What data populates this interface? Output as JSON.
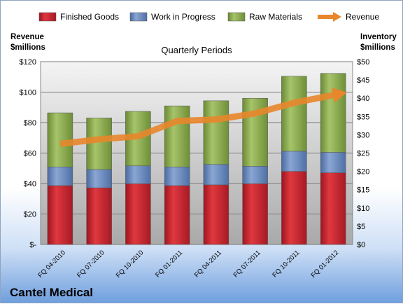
{
  "chart_data": {
    "type": "bar",
    "stacked": true,
    "company": "Cantel Medical",
    "subtitle": "Quarterly Periods",
    "left_axis": {
      "title": [
        "Revenue",
        "$millions"
      ],
      "ylim": [
        0,
        120
      ],
      "ticks": [
        "$-",
        "$20",
        "$40",
        "$60",
        "$80",
        "$100",
        "$120"
      ]
    },
    "right_axis": {
      "title": [
        "Inventory",
        "$millions"
      ],
      "ylim": [
        0,
        50
      ],
      "ticks": [
        "$0",
        "$5",
        "$10",
        "$15",
        "$20",
        "$25",
        "$30",
        "$35",
        "$40",
        "$45",
        "$50"
      ]
    },
    "categories": [
      "FQ 04-2010",
      "FQ 07-2010",
      "FQ 10-2010",
      "FQ 01-2011",
      "FQ 04-2011",
      "FQ 07-2011",
      "FQ 10-2011",
      "FQ 01-2012"
    ],
    "series": [
      {
        "name": "Finished Goods",
        "axis": "right",
        "color": "#c0202a",
        "values": [
          16.1,
          15.5,
          16.6,
          16.1,
          16.3,
          16.6,
          20.0,
          19.6
        ]
      },
      {
        "name": "Work in Progress",
        "axis": "right",
        "color": "#5b7fb5",
        "values": [
          5.1,
          5.0,
          4.9,
          5.1,
          5.6,
          4.8,
          5.5,
          5.6
        ]
      },
      {
        "name": "Raw Materials",
        "axis": "right",
        "color": "#86a84a",
        "values": [
          14.8,
          14.1,
          14.9,
          16.7,
          17.4,
          18.6,
          20.5,
          21.6
        ]
      },
      {
        "name": "Revenue",
        "axis": "left",
        "type": "line",
        "color": "#e8862b",
        "values": [
          66,
          69,
          71,
          81,
          82,
          86,
          93,
          98
        ]
      }
    ],
    "legend_position": "top",
    "grid": true
  }
}
